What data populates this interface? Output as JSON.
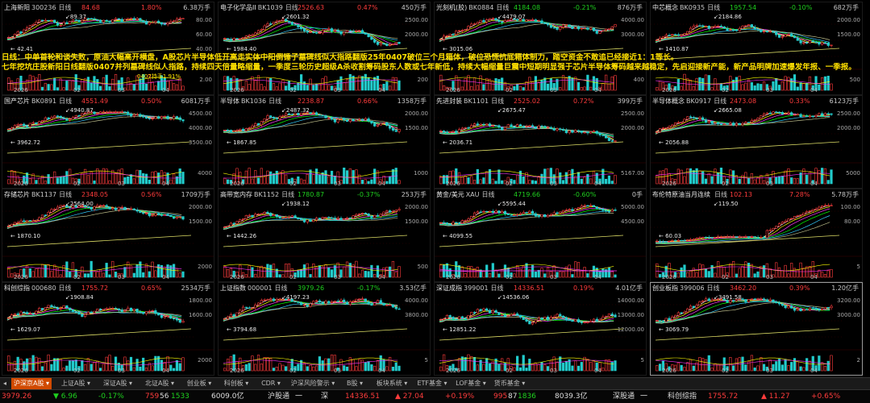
{
  "panels": [
    {
      "name": "上海新阳",
      "code": "300236",
      "period": "日线",
      "price": "84.68",
      "pct": "1.80%",
      "vol": "6.38万手",
      "dir": "up",
      "date": "2026",
      "months": [
        "02",
        "03",
        "04"
      ],
      "yticks": [
        "80.00",
        "60.00",
        "40.00"
      ],
      "vticks": [
        "2.00"
      ],
      "ann": [
        "89.37",
        "42.41"
      ],
      "seed": 1
    },
    {
      "name": "电子化学品II",
      "code": "BK1039",
      "period": "日线",
      "price": "2526.63",
      "pct": "0.47%",
      "vol": "450万手",
      "dir": "up",
      "date": "2026",
      "months": [
        "02",
        "03",
        "04"
      ],
      "yticks": [
        "2500.00",
        "2000.00"
      ],
      "vticks": [
        "200"
      ],
      "ann": [
        "2601.32",
        "1984.40"
      ],
      "seed": 2
    },
    {
      "name": "光刻机(胶)",
      "code": "BK0884",
      "period": "日线",
      "price": "4184.08",
      "pct": "-0.21%",
      "vol": "876万手",
      "dir": "down",
      "date": "2026",
      "months": [
        "02",
        "03",
        "04"
      ],
      "yticks": [
        "4000.00",
        "3000.00"
      ],
      "vticks": [
        "400"
      ],
      "ann": [
        "4479.07",
        "3015.06"
      ],
      "seed": 3
    },
    {
      "name": "中芯概念",
      "code": "BK0935",
      "period": "日线",
      "price": "1957.54",
      "pct": "-0.10%",
      "vol": "682万手",
      "dir": "down",
      "date": "2026",
      "months": [
        "02",
        "03",
        "04"
      ],
      "yticks": [
        "2000.00",
        "1500.00"
      ],
      "vticks": [
        "500"
      ],
      "ann": [
        "2184.86",
        "1410.87"
      ],
      "seed": 4
    },
    {
      "name": "国产芯片",
      "code": "BK0891",
      "period": "日线",
      "price": "4551.49",
      "pct": "0.50%",
      "vol": "6081万手",
      "dir": "up",
      "date": "2026",
      "months": [
        "02",
        "03",
        "04"
      ],
      "yticks": [
        "4500.00",
        "4000.00",
        "3500.00"
      ],
      "vticks": [
        "4000"
      ],
      "ann": [
        "4940.87",
        "3962.72"
      ],
      "seed": 5
    },
    {
      "name": "半导体",
      "code": "BK1036",
      "period": "日线",
      "price": "2238.87",
      "pct": "0.66%",
      "vol": "1358万手",
      "dir": "up",
      "date": "2026",
      "months": [
        "02",
        "03",
        "04"
      ],
      "yticks": [
        "2000.00",
        "1500.00"
      ],
      "vticks": [
        "1000"
      ],
      "ann": [
        "2487.32",
        "1867.85"
      ],
      "seed": 6
    },
    {
      "name": "先进封装",
      "code": "BK1101",
      "period": "日线",
      "price": "2525.02",
      "pct": "0.72%",
      "vol": "399万手",
      "dir": "up",
      "date": "2026",
      "months": [
        "02",
        "03",
        "04"
      ],
      "yticks": [
        "2500.00",
        "2000.00"
      ],
      "vticks": [
        "5167.00"
      ],
      "ann": [
        "2675.47",
        "2036.71"
      ],
      "seed": 7
    },
    {
      "name": "半导体概念",
      "code": "BK0917",
      "period": "日线",
      "price": "2473.08",
      "pct": "0.33%",
      "vol": "6123万手",
      "dir": "up",
      "date": "2026",
      "months": [
        "02",
        "03",
        "04"
      ],
      "yticks": [
        "2500.00",
        "2000.00"
      ],
      "vticks": [
        "5000"
      ],
      "ann": [
        "2665.08",
        "2056.88"
      ],
      "seed": 8
    },
    {
      "name": "存储芯片",
      "code": "BK1137",
      "period": "日线",
      "price": "2348.05",
      "pct": "0.56%",
      "vol": "1709万手",
      "dir": "up",
      "date": "2026",
      "months": [
        "02",
        "03",
        "04"
      ],
      "yticks": [
        "2000.00",
        "1500.00"
      ],
      "vticks": [
        "2000"
      ],
      "ann": [
        "2564.00",
        "1870.10"
      ],
      "seed": 9
    },
    {
      "name": "高带宽内存",
      "code": "BK1152",
      "period": "日线",
      "price": "1780.87",
      "pct": "-0.37%",
      "vol": "253万手",
      "dir": "down",
      "date": "2026",
      "months": [
        "02",
        "03",
        "04"
      ],
      "yticks": [
        "2000.00",
        "1500.00"
      ],
      "vticks": [
        "500"
      ],
      "ann": [
        "1938.12",
        "1442.26"
      ],
      "seed": 10
    },
    {
      "name": "黄金/美元",
      "code": "XAU",
      "period": "日线",
      "price": "4719.66",
      "pct": "-0.60%",
      "vol": "0手",
      "dir": "down",
      "date": "2026",
      "months": [
        "02",
        "03",
        "04"
      ],
      "yticks": [
        "5000.00",
        "4500.00"
      ],
      "vticks": [
        ""
      ],
      "ann": [
        "5595.44",
        "4099.55"
      ],
      "seed": 11
    },
    {
      "name": "布伦特原油当月连续",
      "code": "",
      "period": "日线",
      "price": "102.13",
      "pct": "7.28%",
      "vol": "5.78万手",
      "dir": "up",
      "date": "2026",
      "months": [
        "02",
        "03",
        "04"
      ],
      "yticks": [
        "100.00",
        "80.00"
      ],
      "vticks": [
        "5"
      ],
      "ann": [
        "119.50",
        "60.03"
      ],
      "seed": 12
    },
    {
      "name": "科创综指",
      "code": "000680",
      "period": "日线",
      "price": "1755.72",
      "pct": "0.65%",
      "vol": "2534万手",
      "dir": "up",
      "date": "2026",
      "months": [
        "02",
        "03",
        "04"
      ],
      "yticks": [
        "1800.00",
        "1600.00"
      ],
      "vticks": [
        "2000"
      ],
      "ann": [
        "1908.84",
        "1629.07"
      ],
      "seed": 13
    },
    {
      "name": "上证指数",
      "code": "000001",
      "period": "日线",
      "price": "3979.26",
      "pct": "-0.17%",
      "vol": "3.53亿手",
      "dir": "down",
      "date": "2026",
      "months": [
        "02",
        "03",
        "04"
      ],
      "yticks": [
        "4000.00",
        "3800.00"
      ],
      "vticks": [
        "5"
      ],
      "ann": [
        "4197.23",
        "3794.68"
      ],
      "seed": 14
    },
    {
      "name": "深证成指",
      "code": "399001",
      "period": "日线",
      "price": "14336.51",
      "pct": "0.19%",
      "vol": "4.01亿手",
      "dir": "up",
      "date": "2026",
      "months": [
        "02",
        "03",
        "04"
      ],
      "yticks": [
        "14000.00",
        "13000.00",
        "12000.00"
      ],
      "vticks": [
        "5"
      ],
      "ann": [
        "14536.06",
        "12851.22"
      ],
      "seed": 15
    },
    {
      "name": "创业板指",
      "code": "399006",
      "period": "日线",
      "price": "3462.20",
      "pct": "0.39%",
      "vol": "1.20亿手",
      "dir": "up",
      "date": "2026",
      "months": [
        "02",
        "03",
        "04"
      ],
      "yticks": [
        "3200.00",
        "3000.00"
      ],
      "vticks": [
        "2"
      ],
      "ann": [
        "3491.58",
        "3069.79"
      ],
      "seed": 16
    }
  ],
  "overlay_lines": [
    "日线：中单首轮和谈失败，原油大幅高开横盘，A股芯片半导体低开高走实体中阳倒锤子墓碑线似大指路翻版25年0407破位三个月箱体，破位恐慌抗底箱体制力，踏空资金不敢追已经接近1：1等长。",
    "七年挖坑庄股新阳日线翻版0407并列墓碑线似人指路，持续四天倍量略缩量，一季度三轮历史超级A杀收割筹码股东人数或七年新低，持续大幅缩量巨震中短期明显强于芯片半导体筹码越来越稳定，先启迎接新产能，新产品明牌加速爆发年报、一季报。"
  ],
  "overlay_extra": "0407持手1.91%",
  "tabs": [
    "沪深京A股",
    "上证A股",
    "深证A股",
    "北证A股",
    "创业板",
    "科创板",
    "CDR",
    "沪深风险警示",
    "B股",
    "板块系统",
    "ETF基金",
    "LOF基金",
    "货币基金"
  ],
  "status": {
    "sh_index": "3979.26",
    "sh_chg": "6.96",
    "sh_pct": "-0.17%",
    "sh_counts": "759",
    "sh_counts2": "56",
    "sh_counts3": "1533",
    "sh_amount": "6009.0亿",
    "hk_label": "沪股通",
    "hk_val": "一",
    "sz_label": "深",
    "sz_index": "14336.51",
    "sz_chg": "27.04",
    "sz_pct": "+0.19%",
    "sz_counts": "995",
    "sz_counts2": "87",
    "sz_counts3": "1836",
    "sz_amount": "8039.3亿",
    "sgt_label": "深股通",
    "sgt_val": "一",
    "kc_label": "科创综指",
    "kc_index": "1755.72",
    "kc_chg": "11.27",
    "kc_pct": "+0.65%"
  },
  "colors": {
    "up": "#ff3c3c",
    "down": "#1fd11f",
    "ma1": "#ffffff",
    "ma2": "#ffff00",
    "ma3": "#ff33ff",
    "ma4": "#00ff00",
    "ma5": "#33ccff",
    "ma6": "#bbbb88",
    "tab_active": "#d14a00"
  }
}
